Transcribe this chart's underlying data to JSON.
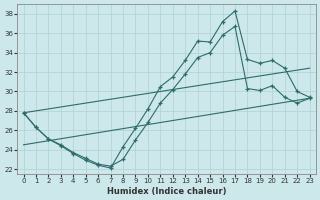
{
  "xlabel": "Humidex (Indice chaleur)",
  "bg_color": "#cde8ea",
  "grid_color": "#b0d0d4",
  "line_color": "#2e6b6b",
  "xlim": [
    -0.5,
    23.5
  ],
  "ylim": [
    21.5,
    39.0
  ],
  "xticks": [
    0,
    1,
    2,
    3,
    4,
    5,
    6,
    7,
    8,
    9,
    10,
    11,
    12,
    13,
    14,
    15,
    16,
    17,
    18,
    19,
    20,
    21,
    22,
    23
  ],
  "yticks": [
    22,
    24,
    26,
    28,
    30,
    32,
    34,
    36,
    38
  ],
  "line1_x": [
    0,
    1,
    2,
    3,
    4,
    5,
    6,
    7,
    8,
    9,
    10,
    11,
    12,
    13,
    14,
    15,
    16,
    17,
    18,
    19,
    20,
    21,
    22,
    23
  ],
  "line1_y": [
    27.8,
    26.3,
    25.1,
    24.4,
    23.6,
    22.9,
    22.4,
    22.1,
    24.3,
    26.2,
    28.2,
    30.5,
    31.5,
    33.2,
    35.2,
    35.1,
    37.2,
    38.3,
    33.3,
    32.9,
    33.2,
    32.4,
    30.0,
    29.4
  ],
  "line2_x": [
    0,
    1,
    2,
    3,
    4,
    5,
    6,
    7,
    8,
    9,
    10,
    11,
    12,
    13,
    14,
    15,
    16,
    17,
    18,
    19,
    20,
    21,
    22,
    23
  ],
  "line2_y": [
    27.8,
    26.3,
    25.1,
    24.5,
    23.7,
    23.1,
    22.5,
    22.3,
    23.0,
    25.0,
    26.8,
    28.8,
    30.2,
    31.8,
    33.5,
    34.0,
    35.8,
    36.7,
    30.3,
    30.1,
    30.6,
    29.4,
    28.8,
    29.3
  ],
  "trend1_x": [
    0,
    23
  ],
  "trend1_y": [
    27.8,
    32.4
  ],
  "trend2_x": [
    0,
    23
  ],
  "trend2_y": [
    24.5,
    29.3
  ]
}
